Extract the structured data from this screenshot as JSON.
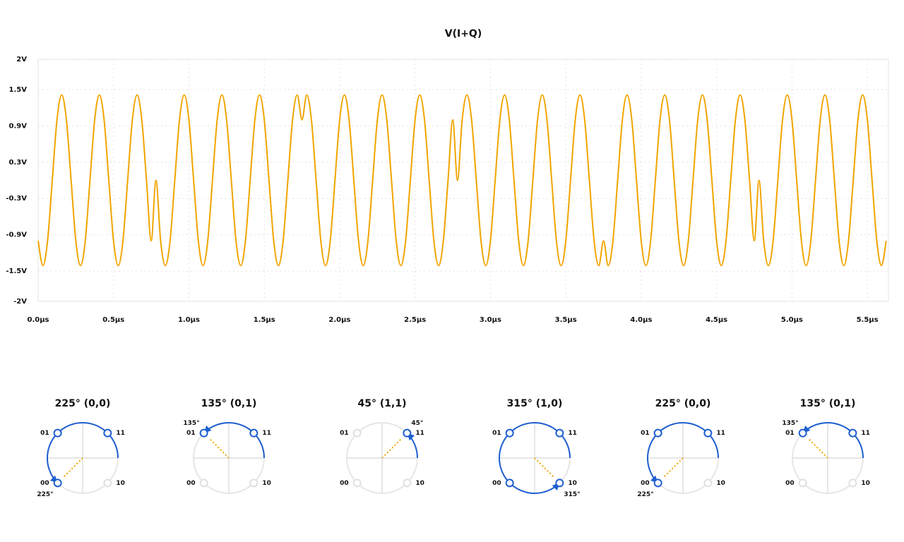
{
  "chart_data": {
    "type": "line",
    "title": "V(I+Q)",
    "x": [
      0,
      0.03125,
      0.0625,
      0.09375,
      0.125,
      0.15625,
      0.1875,
      0.21875,
      0.25,
      0.28125,
      0.3125,
      0.34375,
      0.375,
      0.40625,
      0.4375,
      0.46875,
      0.5,
      0.53125,
      0.5625,
      0.59375,
      0.625,
      0.65625,
      0.6875,
      0.71875,
      0.75,
      0.78125,
      0.8125,
      0.84375,
      0.875,
      0.90625,
      0.9375,
      0.96875,
      1,
      1.03125,
      1.0625,
      1.09375,
      1.125,
      1.15625,
      1.1875,
      1.21875,
      1.25,
      1.28125,
      1.3125,
      1.34375,
      1.375,
      1.40625,
      1.4375,
      1.46875,
      1.5,
      1.53125,
      1.5625,
      1.59375,
      1.625,
      1.65625,
      1.6875,
      1.71875,
      1.75,
      1.78125,
      1.8125,
      1.84375,
      1.875,
      1.90625,
      1.9375,
      1.96875,
      2,
      2.03125,
      2.0625,
      2.09375,
      2.125,
      2.15625,
      2.1875,
      2.21875,
      2.25,
      2.28125,
      2.3125,
      2.34375,
      2.375,
      2.40625,
      2.4375,
      2.46875,
      2.5,
      2.53125,
      2.5625,
      2.59375,
      2.625,
      2.65625,
      2.6875,
      2.71875,
      2.75,
      2.78125,
      2.8125,
      2.84375,
      2.875,
      2.90625,
      2.9375,
      2.96875,
      3,
      3.03125,
      3.0625,
      3.09375,
      3.125,
      3.15625,
      3.1875,
      3.21875,
      3.25,
      3.28125,
      3.3125,
      3.34375,
      3.375,
      3.40625,
      3.4375,
      3.46875,
      3.5,
      3.53125,
      3.5625,
      3.59375,
      3.625,
      3.65625,
      3.6875,
      3.71875,
      3.75,
      3.78125,
      3.8125,
      3.84375,
      3.875,
      3.90625,
      3.9375,
      3.96875,
      4,
      4.03125,
      4.0625,
      4.09375,
      4.125,
      4.15625,
      4.1875,
      4.21875,
      4.25,
      4.28125,
      4.3125,
      4.34375,
      4.375,
      4.40625,
      4.4375,
      4.46875,
      4.5,
      4.53125,
      4.5625,
      4.59375,
      4.625,
      4.65625,
      4.6875,
      4.71875,
      4.75,
      4.78125,
      4.8125,
      4.84375,
      4.875,
      4.90625,
      4.9375,
      4.96875,
      5,
      5.03125,
      5.0625,
      5.09375,
      5.125,
      5.15625,
      5.1875,
      5.21875,
      5.25,
      5.28125,
      5.3125,
      5.34375,
      5.375,
      5.40625,
      5.4375,
      5.46875,
      5.5,
      5.53125,
      5.5625,
      5.59375,
      5.625
    ],
    "values": [
      -1,
      -1.41,
      -1,
      0,
      1,
      1.41,
      1,
      0,
      -1,
      -1.41,
      -1,
      0,
      1,
      1.41,
      1,
      0,
      -1,
      -1.41,
      -1,
      0,
      1,
      1.41,
      1,
      0,
      -1,
      0,
      -1,
      -1.41,
      -1,
      0,
      1,
      1.41,
      1,
      0,
      -1,
      -1.41,
      -1,
      0,
      1,
      1.41,
      1,
      0,
      -1,
      -1.41,
      -1,
      0,
      1,
      1.41,
      1,
      0,
      -1,
      -1.41,
      -1,
      0,
      1,
      1.41,
      1,
      1.41,
      1,
      0,
      -1,
      -1.41,
      -1,
      0,
      1,
      1.41,
      1,
      0,
      -1,
      -1.41,
      -1,
      0,
      1,
      1.41,
      1,
      0,
      -1,
      -1.41,
      -1,
      0,
      1,
      1.41,
      1,
      0,
      -1,
      -1.41,
      -1,
      0,
      1,
      0,
      1,
      1.41,
      1,
      0,
      -1,
      -1.41,
      -1,
      0,
      1,
      1.41,
      1,
      0,
      -1,
      -1.41,
      -1,
      0,
      1,
      1.41,
      1,
      0,
      -1,
      -1.41,
      -1,
      0,
      1,
      1.41,
      1,
      0,
      -1,
      -1.41,
      -1,
      -1.41,
      -1,
      0,
      1,
      1.41,
      1,
      0,
      -1,
      -1.41,
      -1,
      0,
      1,
      1.41,
      1,
      0,
      -1,
      -1.41,
      -1,
      0,
      1,
      1.41,
      1,
      0,
      -1,
      -1.41,
      -1,
      0,
      1,
      1.41,
      1,
      0,
      -1,
      0,
      -1,
      -1.41,
      -1,
      0,
      1,
      1.41,
      1,
      0,
      -1,
      -1.41,
      -1,
      0,
      1,
      1.41,
      1,
      0,
      -1,
      -1.41,
      -1,
      0,
      1,
      1.41,
      1,
      0,
      -1,
      -1.41,
      -1
    ],
    "color": "#f0a500",
    "xlim": [
      0,
      5.64
    ],
    "xticks": [
      {
        "value": 0,
        "label": "0.0µs"
      },
      {
        "value": 0.5,
        "label": "0.5µs"
      },
      {
        "value": 1,
        "label": "1.0µs"
      },
      {
        "value": 1.5,
        "label": "1.5µs"
      },
      {
        "value": 2,
        "label": "2.0µs"
      },
      {
        "value": 2.5,
        "label": "2.5µs"
      },
      {
        "value": 3,
        "label": "3.0µs"
      },
      {
        "value": 3.5,
        "label": "3.5µs"
      },
      {
        "value": 4,
        "label": "4.0µs"
      },
      {
        "value": 4.5,
        "label": "4.5µs"
      },
      {
        "value": 5,
        "label": "5.0µs"
      },
      {
        "value": 5.5,
        "label": "5.5µs"
      }
    ],
    "ylim": [
      -2,
      2
    ],
    "yticks": [
      {
        "value": 2,
        "label": "2V"
      },
      {
        "value": 1.5,
        "label": "1.5V"
      },
      {
        "value": 0.9,
        "label": "0.9V"
      },
      {
        "value": 0.3,
        "label": "0.3V"
      },
      {
        "value": -0.3,
        "label": "-0.3V"
      },
      {
        "value": -0.9,
        "label": "-0.9V"
      },
      {
        "value": -1.5,
        "label": "-1.5V"
      },
      {
        "value": -2,
        "label": "-2V"
      }
    ],
    "grid": true
  },
  "point_labels": [
    "11",
    "01",
    "00",
    "10"
  ],
  "symbols": [
    {
      "title": "225° (0,0)",
      "angle": 225,
      "angle_label": "225°"
    },
    {
      "title": "135° (0,1)",
      "angle": 135,
      "angle_label": "135°"
    },
    {
      "title": "45° (1,1)",
      "angle": 45,
      "angle_label": "45°"
    },
    {
      "title": "315° (1,0)",
      "angle": 315,
      "angle_label": "315°"
    },
    {
      "title": "225° (0,0)",
      "angle": 225,
      "angle_label": "225°"
    },
    {
      "title": "135° (0,1)",
      "angle": 135,
      "angle_label": "135°"
    }
  ]
}
